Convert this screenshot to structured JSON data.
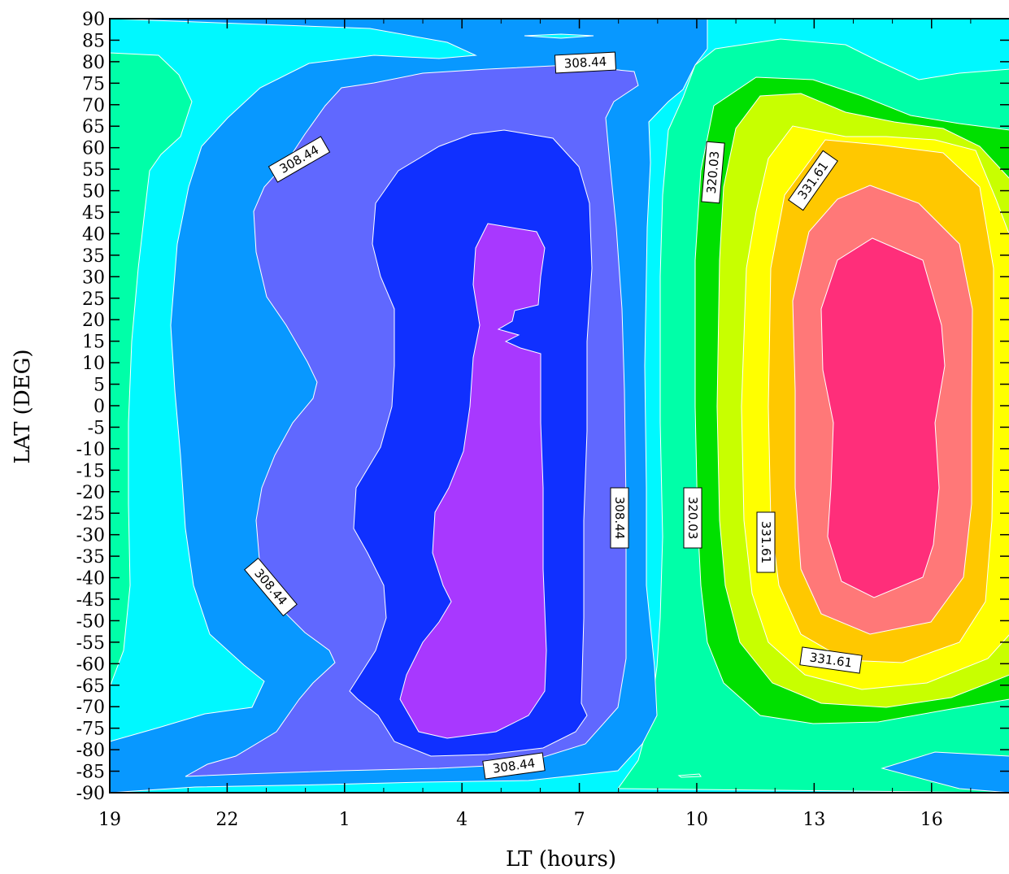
{
  "chart_data": {
    "type": "contour",
    "xlabel": "LT (hours)",
    "ylabel": "LAT (DEG)",
    "x_ticks": [
      19,
      22,
      1,
      4,
      7,
      10,
      13,
      16
    ],
    "y_ticks": [
      90,
      85,
      80,
      75,
      70,
      65,
      60,
      55,
      50,
      45,
      40,
      35,
      30,
      25,
      20,
      15,
      10,
      5,
      0,
      -5,
      -10,
      -15,
      -20,
      -25,
      -30,
      -35,
      -40,
      -45,
      -50,
      -55,
      -60,
      -65,
      -70,
      -75,
      -80,
      -85,
      -90
    ],
    "ylim": [
      -90,
      90
    ],
    "xlim_hours_elapsed_from_19": [
      0,
      23
    ],
    "grid": false,
    "legend": "none",
    "contour_labels": [
      "308.44",
      "308.44",
      "308.44",
      "308.44",
      "308.44",
      "320.03",
      "320.03",
      "331.61",
      "331.61",
      "331.61"
    ],
    "level_colors": [
      "#a838ff",
      "#1030ff",
      "#6068ff",
      "#0898ff",
      "#00f8ff",
      "#00ffa8",
      "#00e000",
      "#c8ff00",
      "#ffff00",
      "#ffc800",
      "#ff7878",
      "#ff2e7a"
    ]
  }
}
